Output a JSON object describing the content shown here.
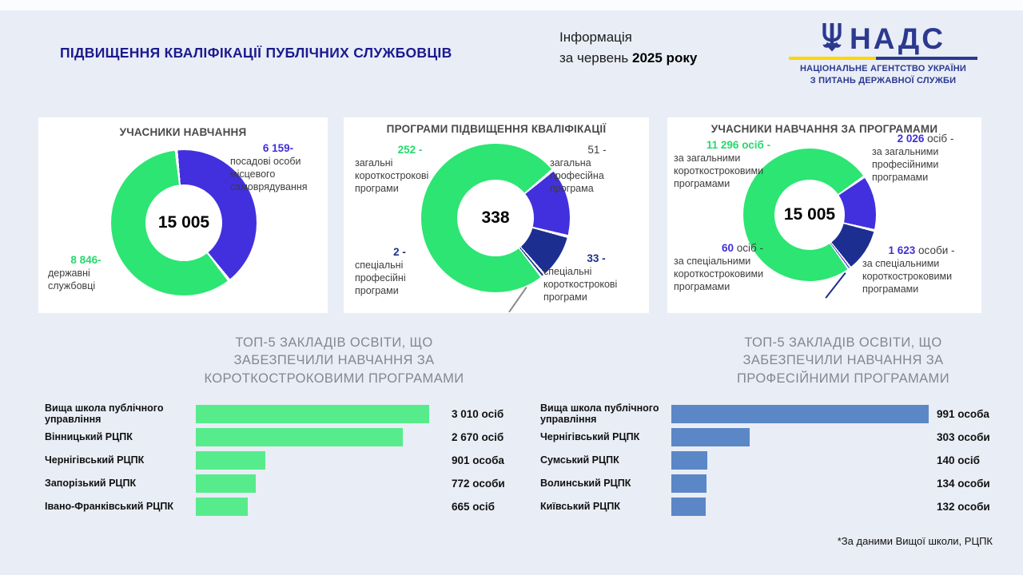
{
  "page": {
    "title": "ПІДВИЩЕННЯ КВАЛІФІКАЦІЇ ПУБЛІЧНИХ СЛУЖБОВЦІВ",
    "period_line1": "Інформація",
    "period_line2_prefix": "за червень ",
    "period_line2_bold": "2025 року",
    "footnote": "*За даними Вищої школи, РЦПК",
    "colors": {
      "background": "#e9edf6",
      "title_navy": "#1b1b8e",
      "accent_green": "#2ce573",
      "accent_indigo": "#4230de",
      "accent_navy": "#1c2e8f",
      "bar_green": "#57ec8b",
      "bar_blue": "#5b87c6"
    }
  },
  "logo": {
    "acronym": "НАДС",
    "org_line1": "НАЦІОНАЛЬНЕ АГЕНТСТВО УКРАЇНИ",
    "org_line2": "З ПИТАНЬ ДЕРЖАВНОЇ СЛУЖБИ",
    "trident_icon": "ukraine-trident",
    "brand_blue": "#2b3990",
    "brand_yellow": "#ffd500"
  },
  "chart_data": [
    {
      "type": "pie",
      "subtype": "donut",
      "title": "УЧАСНИКИ НАВЧАННЯ",
      "center_total": "15 005",
      "start_angle": -6,
      "segments": [
        {
          "value": 6159,
          "value_label": "6 159-",
          "value_suffix": "",
          "label": "посадові особи місцевого самоврядування",
          "color": "#4230de",
          "num_color": "#4030d8"
        },
        {
          "value": 8846,
          "value_label": "8 846-",
          "value_suffix": "",
          "label": "державні службовці",
          "color": "#2ce573",
          "num_color": "#25da6e"
        }
      ]
    },
    {
      "type": "pie",
      "subtype": "donut",
      "title": "ПРОГРАМИ ПІДВИЩЕННЯ КВАЛІФІКАЦІЇ",
      "center_total": "338",
      "start_angle": 50,
      "segments": [
        {
          "value": 51,
          "value_label": "51 -",
          "value_suffix": "",
          "label": "загальна професійна програма",
          "color": "#4230de",
          "num_color": "#3f3f3f"
        },
        {
          "value": 33,
          "value_label": "33 -",
          "value_suffix": "",
          "label": "спеціальні короткострокові програми",
          "color": "#1c2e8f",
          "num_color": "#1c2e8f"
        },
        {
          "value": 2,
          "value_label": "2 -",
          "value_suffix": "",
          "label": "спеціальні професійні програми",
          "color": "#1c2e8f",
          "num_color": "#1c2e8f"
        },
        {
          "value": 252,
          "value_label": "252 -",
          "value_suffix": "",
          "label": "загальні короткострокові програми",
          "color": "#2ce573",
          "num_color": "#25da6e"
        }
      ]
    },
    {
      "type": "pie",
      "subtype": "donut",
      "title": "УЧАСНИКИ НАВЧАННЯ ЗА ПРОГРАМАМИ",
      "center_total": "15 005",
      "start_angle": 55,
      "segments": [
        {
          "value": 2026,
          "value_label": "2 026",
          "value_suffix": " осіб -",
          "label": "за загальними професійними програмами",
          "color": "#4230de",
          "num_color": "#4030d8"
        },
        {
          "value": 1623,
          "value_label": "1 623",
          "value_suffix": " особи -",
          "label": "за спеціальними короткостроковими програмами",
          "color": "#1c2e8f",
          "num_color": "#4030d8"
        },
        {
          "value": 60,
          "value_label": "60",
          "value_suffix": " осіб -",
          "label": "за спеціальними короткостроковими програмами",
          "color": "#4230de",
          "num_color": "#4030d8"
        },
        {
          "value": 11296,
          "value_label": "11 296 осіб -",
          "value_suffix": "",
          "label": "за загальними короткостроковими програмами",
          "color": "#2ce573",
          "num_color": "#25da6e"
        }
      ]
    },
    {
      "type": "bar",
      "orientation": "horizontal",
      "title": "ТОП-5 ЗАКЛАДІВ ОСВІТИ, ЩО ЗАБЕЗПЕЧИЛИ НАВЧАННЯ ЗА КОРОТКОСТРОКОВИМИ ПРОГРАМАМИ",
      "color": "#57ec8b",
      "xlim": [
        0,
        3010
      ],
      "bars": [
        {
          "label": "Вища школа публічного управління",
          "value": 3010,
          "value_label": "3 010 осіб"
        },
        {
          "label": "Вінницький РЦПК",
          "value": 2670,
          "value_label": "2 670 осіб"
        },
        {
          "label": "Чернігівський РЦПК",
          "value": 901,
          "value_label": "901 особа"
        },
        {
          "label": "Запорізький РЦПК",
          "value": 772,
          "value_label": "772 особи"
        },
        {
          "label": "Івано-Франківський РЦПК",
          "value": 665,
          "value_label": "665 осіб"
        }
      ]
    },
    {
      "type": "bar",
      "orientation": "horizontal",
      "title": "ТОП-5 ЗАКЛАДІВ ОСВІТИ, ЩО ЗАБЕЗПЕЧИЛИ НАВЧАННЯ ЗА ПРОФЕСІЙНИМИ ПРОГРАМАМИ",
      "color": "#5b87c6",
      "xlim": [
        0,
        991
      ],
      "bars": [
        {
          "label": "Вища школа публічного управління",
          "value": 991,
          "value_label": "991 особа"
        },
        {
          "label": "Чернігівський РЦПК",
          "value": 303,
          "value_label": "303 особи"
        },
        {
          "label": "Сумський РЦПК",
          "value": 140,
          "value_label": "140 осіб"
        },
        {
          "label": "Волинський РЦПК",
          "value": 134,
          "value_label": "134 особи"
        },
        {
          "label": "Київський РЦПК",
          "value": 132,
          "value_label": "132 особи"
        }
      ]
    }
  ]
}
